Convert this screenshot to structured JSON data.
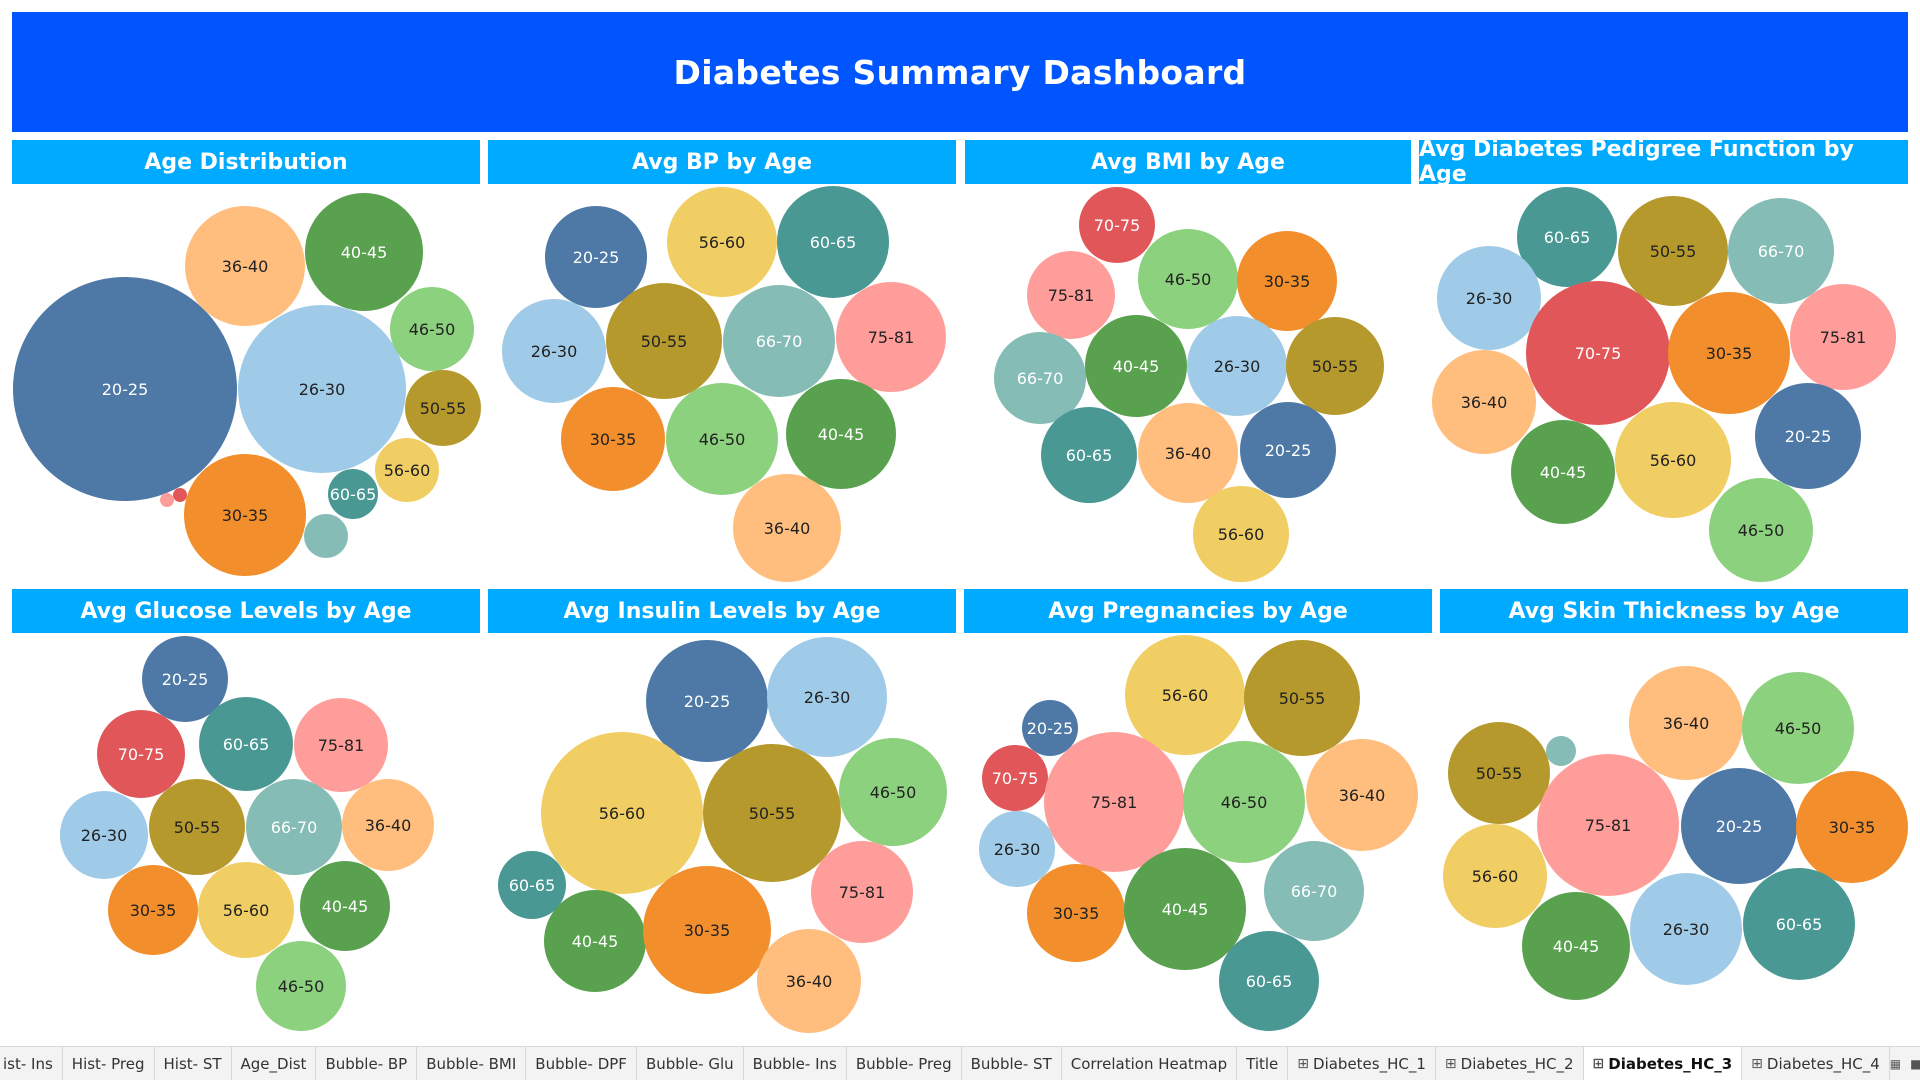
{
  "dashboard": {
    "title": "Diabetes Summary Dashboard"
  },
  "colors": {
    "title_bg": "#0055ff",
    "header_bg": "#00aaff",
    "20-25": "#4e79a7",
    "26-30": "#a0cbe8",
    "30-35": "#f28e2b",
    "36-40": "#ffbe7d",
    "40-45": "#59a14f",
    "46-50": "#8cd17d",
    "50-55": "#b6992d",
    "56-60": "#f1ce63",
    "60-65": "#499894",
    "66-70": "#86bcb6",
    "70-75": "#e15759",
    "75-81": "#ff9d9a"
  },
  "panels": [
    {
      "title": "Age Distribution",
      "bubbles": [
        {
          "label": "20-25"
        },
        {
          "label": "26-30"
        },
        {
          "label": "36-40"
        },
        {
          "label": "40-45"
        },
        {
          "label": "46-50"
        },
        {
          "label": "50-55"
        },
        {
          "label": "56-60"
        },
        {
          "label": "30-35"
        },
        {
          "label": "60-65"
        },
        {
          "label": ""
        },
        {
          "label": ""
        },
        {
          "label": ""
        }
      ]
    },
    {
      "title": "Avg BP by Age",
      "bubbles": [
        {
          "label": "20-25"
        },
        {
          "label": "56-60"
        },
        {
          "label": "60-65"
        },
        {
          "label": "26-30"
        },
        {
          "label": "50-55"
        },
        {
          "label": "66-70"
        },
        {
          "label": "75-81"
        },
        {
          "label": "30-35"
        },
        {
          "label": "46-50"
        },
        {
          "label": "40-45"
        },
        {
          "label": "36-40"
        }
      ]
    },
    {
      "title": "Avg BMI by Age",
      "bubbles": [
        {
          "label": "70-75"
        },
        {
          "label": "75-81"
        },
        {
          "label": "46-50"
        },
        {
          "label": "30-35"
        },
        {
          "label": "66-70"
        },
        {
          "label": "40-45"
        },
        {
          "label": "26-30"
        },
        {
          "label": "50-55"
        },
        {
          "label": "60-65"
        },
        {
          "label": "36-40"
        },
        {
          "label": "20-25"
        },
        {
          "label": "56-60"
        }
      ]
    },
    {
      "title": "Avg Diabetes Pedigree Function by Age",
      "bubbles": [
        {
          "label": "60-65"
        },
        {
          "label": "50-55"
        },
        {
          "label": "66-70"
        },
        {
          "label": "26-30"
        },
        {
          "label": "70-75"
        },
        {
          "label": "30-35"
        },
        {
          "label": "75-81"
        },
        {
          "label": "36-40"
        },
        {
          "label": "40-45"
        },
        {
          "label": "56-60"
        },
        {
          "label": "20-25"
        },
        {
          "label": "46-50"
        }
      ]
    },
    {
      "title": "Avg Glucose Levels by Age",
      "bubbles": [
        {
          "label": "20-25"
        },
        {
          "label": "70-75"
        },
        {
          "label": "60-65"
        },
        {
          "label": "75-81"
        },
        {
          "label": "26-30"
        },
        {
          "label": "50-55"
        },
        {
          "label": "66-70"
        },
        {
          "label": "36-40"
        },
        {
          "label": "30-35"
        },
        {
          "label": "56-60"
        },
        {
          "label": "40-45"
        },
        {
          "label": "46-50"
        }
      ]
    },
    {
      "title": "Avg Insulin Levels by Age",
      "bubbles": [
        {
          "label": "20-25"
        },
        {
          "label": "26-30"
        },
        {
          "label": "56-60"
        },
        {
          "label": "50-55"
        },
        {
          "label": "46-50"
        },
        {
          "label": "60-65"
        },
        {
          "label": "75-81"
        },
        {
          "label": "40-45"
        },
        {
          "label": "30-35"
        },
        {
          "label": "36-40"
        }
      ]
    },
    {
      "title": "Avg Pregnancies by Age",
      "bubbles": [
        {
          "label": "56-60"
        },
        {
          "label": "50-55"
        },
        {
          "label": "20-25"
        },
        {
          "label": "70-75"
        },
        {
          "label": "75-81"
        },
        {
          "label": "46-50"
        },
        {
          "label": "36-40"
        },
        {
          "label": "26-30"
        },
        {
          "label": "30-35"
        },
        {
          "label": "40-45"
        },
        {
          "label": "66-70"
        },
        {
          "label": "60-65"
        }
      ]
    },
    {
      "title": "Avg Skin Thickness by Age",
      "bubbles": [
        {
          "label": "36-40"
        },
        {
          "label": "46-50"
        },
        {
          "label": "50-55"
        },
        {
          "label": ""
        },
        {
          "label": "75-81"
        },
        {
          "label": "20-25"
        },
        {
          "label": "30-35"
        },
        {
          "label": "56-60"
        },
        {
          "label": "40-45"
        },
        {
          "label": "26-30"
        },
        {
          "label": "60-65"
        }
      ]
    }
  ],
  "tabs": [
    {
      "label": "ist- Ins"
    },
    {
      "label": "Hist- Preg"
    },
    {
      "label": "Hist- ST"
    },
    {
      "label": "Age_Dist"
    },
    {
      "label": "Bubble- BP"
    },
    {
      "label": "Bubble- BMI"
    },
    {
      "label": "Bubble- DPF"
    },
    {
      "label": "Bubble- Glu"
    },
    {
      "label": "Bubble- Ins"
    },
    {
      "label": "Bubble- Preg"
    },
    {
      "label": "Bubble- ST"
    },
    {
      "label": "Correlation Heatmap"
    },
    {
      "label": "Title"
    },
    {
      "label": "Diabetes_HC_1"
    },
    {
      "label": "Diabetes_HC_2"
    },
    {
      "label": "Diabetes_HC_3"
    },
    {
      "label": "Diabetes_HC_4"
    }
  ],
  "active_tab": "Diabetes_HC_3",
  "tab_icons": {
    "dashboard_tab": "dashboard-grid-icon"
  },
  "tab_controls": [
    "sheet-list-icon",
    "filmstrip-icon",
    "prev-arrow-icon",
    "next-arrow-icon",
    "expand-icon",
    "presentation-icon"
  ]
}
